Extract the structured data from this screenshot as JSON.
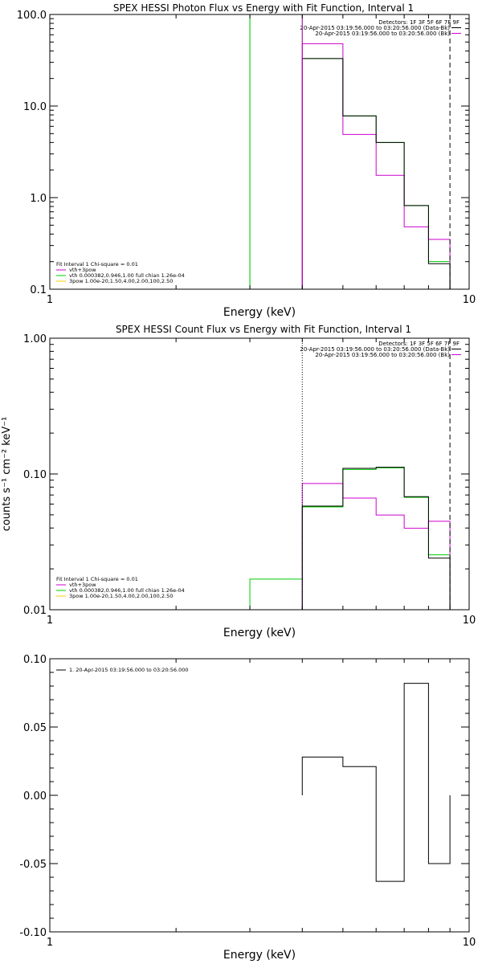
{
  "panels": [
    {
      "title": "SPEX HESSI Photon Flux vs Energy with Fit Function, Interval 1",
      "header": [
        {
          "text": "Detectors: 1F 3F 5F 6F 7F 9F",
          "color": null
        },
        {
          "text": "20-Apr-2015 03:19:56.000 to 03:20:56.000 (Data-Bk)",
          "color": "#000000"
        },
        {
          "text": "20-Apr-2015 03:19:56.000 to 03:20:56.000 (Bk)",
          "color": "#cc00cc"
        }
      ],
      "fit_info": [
        {
          "text": "Fit Interval  1    Chi-square = 0.01",
          "color": null
        },
        {
          "text": "vth+3pow",
          "color": "#cc00cc"
        },
        {
          "text": "vth 0.000382,0.946,1.00  full chian 1.26e-04",
          "color": "#00cc00"
        },
        {
          "text": "3pow 1.00e-20,1.50,4.00,2.00,100,2.50",
          "color": "#ffcc00"
        }
      ]
    },
    {
      "title": "SPEX HESSI Count Flux vs Energy with Fit Function, Interval 1",
      "header": [
        {
          "text": "Detectors: 1F 3F 5F 6F 7F 9F",
          "color": null
        },
        {
          "text": "20-Apr-2015 03:19:56.000 to 03:20:56.000 (Data-Bk)",
          "color": "#000000"
        },
        {
          "text": "20-Apr-2015 03:19:56.000 to 03:20:56.000 (Bk)",
          "color": "#cc00cc"
        }
      ],
      "fit_info": [
        {
          "text": "Fit Interval  1    Chi-square = 0.01",
          "color": null
        },
        {
          "text": "vth+3pow",
          "color": "#cc00cc"
        },
        {
          "text": "vth 0.000382,0.946,1.00  full chian 1.26e-04",
          "color": "#00cc00"
        },
        {
          "text": "3pow 1.00e-20,1.50,4.00,2.00,100,2.50",
          "color": "#ffcc00"
        }
      ]
    },
    {
      "title": "",
      "header": [
        {
          "text": "1. 20-Apr-2015 03:19:56.000 to 03:20:56.000",
          "color": "#000000"
        }
      ],
      "fit_info": []
    }
  ],
  "chart_data": [
    {
      "type": "line",
      "step": true,
      "title": "SPEX HESSI Photon Flux vs Energy with Fit Function, Interval 1",
      "xlabel": "Energy (keV)",
      "ylabel": "",
      "xscale": "log",
      "yscale": "log",
      "xlim": [
        1,
        10
      ],
      "ylim": [
        0.1,
        100
      ],
      "xticks": [
        {
          "v": 1,
          "label": "1"
        },
        {
          "v": 10,
          "label": "10"
        }
      ],
      "yticks": [
        {
          "v": 0.1,
          "label": "0.1"
        },
        {
          "v": 1,
          "label": "1.0"
        },
        {
          "v": 10,
          "label": "10.0"
        },
        {
          "v": 100,
          "label": "100.0"
        }
      ],
      "vlines": [
        {
          "x": 3,
          "color": "#00cc00",
          "style": "solid"
        },
        {
          "x": 4,
          "color": "#cc00cc",
          "style": "solid"
        },
        {
          "x": 9,
          "color": "#000000",
          "style": "dashed"
        }
      ],
      "series": [
        {
          "color": "#00cc00",
          "edges": [
            3,
            4,
            5,
            6,
            7,
            8,
            9
          ],
          "values": [
            100,
            33,
            7.8,
            4.0,
            0.82,
            0.2
          ]
        },
        {
          "color": "#cc00cc",
          "edges": [
            4,
            5,
            6,
            7,
            8,
            9
          ],
          "values": [
            48,
            4.9,
            1.75,
            0.48,
            0.35
          ]
        },
        {
          "color": "#000000",
          "edges": [
            4,
            5,
            6,
            7,
            8,
            9
          ],
          "values": [
            33,
            7.8,
            4.0,
            0.82,
            0.19
          ]
        }
      ]
    },
    {
      "type": "line",
      "step": true,
      "title": "SPEX HESSI Count Flux vs Energy with Fit Function, Interval 1",
      "xlabel": "Energy (keV)",
      "ylabel": "counts s⁻¹ cm⁻² keV⁻¹",
      "xscale": "log",
      "yscale": "log",
      "xlim": [
        1,
        10
      ],
      "ylim": [
        0.01,
        1
      ],
      "xticks": [
        {
          "v": 1,
          "label": "1"
        },
        {
          "v": 10,
          "label": "10"
        }
      ],
      "yticks": [
        {
          "v": 0.01,
          "label": "0.01"
        },
        {
          "v": 0.1,
          "label": "0.10"
        },
        {
          "v": 1,
          "label": "1.00"
        }
      ],
      "vlines": [
        {
          "x": 4,
          "color": "#000000",
          "style": "dotted"
        },
        {
          "x": 9,
          "color": "#000000",
          "style": "dashed"
        }
      ],
      "series": [
        {
          "color": "#00cc00",
          "edges": [
            3,
            4,
            5,
            6,
            7,
            8,
            9
          ],
          "values": [
            0.0168,
            0.0572,
            0.108,
            0.111,
            0.0672,
            0.0254
          ]
        },
        {
          "color": "#cc00cc",
          "edges": [
            4,
            5,
            6,
            7,
            8,
            9
          ],
          "values": [
            0.085,
            0.0665,
            0.0498,
            0.0398,
            0.0448
          ]
        },
        {
          "color": "#000000",
          "edges": [
            4,
            5,
            6,
            7,
            8,
            9
          ],
          "values": [
            0.058,
            0.11,
            0.112,
            0.068,
            0.024
          ]
        }
      ]
    },
    {
      "type": "line",
      "step": true,
      "title": "",
      "xlabel": "Energy (keV)",
      "ylabel": "",
      "xscale": "log",
      "yscale": "linear",
      "xlim": [
        1,
        10
      ],
      "ylim": [
        -0.1,
        0.1
      ],
      "xticks": [
        {
          "v": 1,
          "label": "1"
        },
        {
          "v": 10,
          "label": "10"
        }
      ],
      "yticks": [
        {
          "v": -0.1,
          "label": "-0.10"
        },
        {
          "v": -0.05,
          "label": "-0.05"
        },
        {
          "v": 0,
          "label": "0.00"
        },
        {
          "v": 0.05,
          "label": "0.05"
        },
        {
          "v": 0.1,
          "label": "0.10"
        }
      ],
      "vlines": [],
      "series": [
        {
          "color": "#000000",
          "edges": [
            4,
            5,
            6,
            7,
            8,
            9
          ],
          "values": [
            0.028,
            0.021,
            -0.063,
            0.082,
            -0.05
          ]
        }
      ]
    }
  ]
}
